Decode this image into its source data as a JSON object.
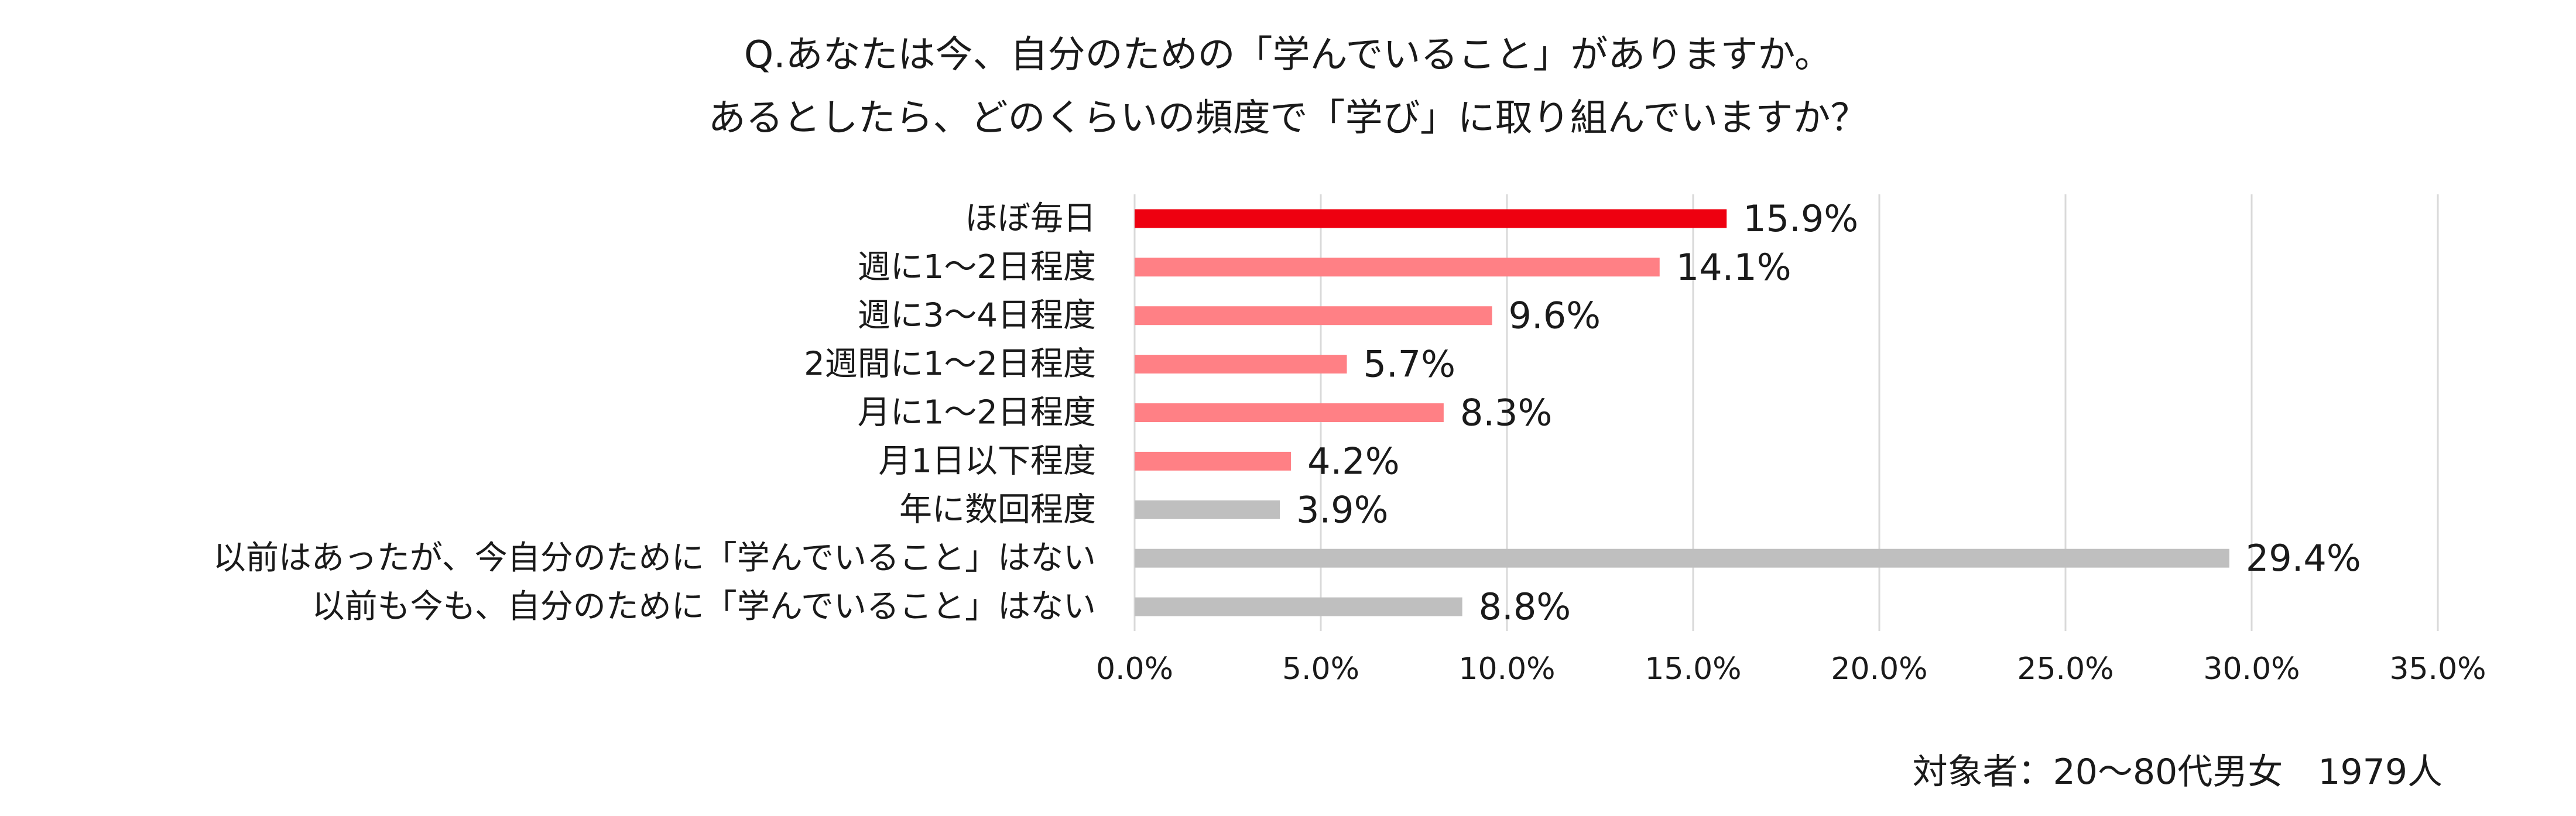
{
  "title": {
    "line1": "Q.あなたは今、自分のための「学んでいること」がありますか。",
    "line2": "あるとしたら、どのくらいの頻度で「学び」に取り組んでいますか？"
  },
  "note": "対象者：20～80代男女　1979人",
  "colors": {
    "highlight": "#ee0010",
    "learning": "#ff8085",
    "not_learning": "#bfbfbf",
    "grid": "#d9d9d9"
  },
  "chart_data": {
    "type": "bar",
    "orientation": "horizontal",
    "categories": [
      "ほぼ毎日",
      "週に1～2日程度",
      "週に3～4日程度",
      "2週間に1～2日程度",
      "月に1～2日程度",
      "月1日以下程度",
      "年に数回程度",
      "以前はあったが、今自分のために「学んでいること」はない",
      "以前も今も、自分のために「学んでいること」はない"
    ],
    "values": [
      15.9,
      14.1,
      9.6,
      5.7,
      8.3,
      4.2,
      3.9,
      29.4,
      8.8
    ],
    "value_labels": [
      "15.9%",
      "14.1%",
      "9.6%",
      "5.7%",
      "8.3%",
      "4.2%",
      "3.9%",
      "29.4%",
      "8.8%"
    ],
    "bar_colors": [
      "#ee0010",
      "#ff8085",
      "#ff8085",
      "#ff8085",
      "#ff8085",
      "#ff8085",
      "#bfbfbf",
      "#bfbfbf",
      "#bfbfbf"
    ],
    "xlim": [
      0,
      35
    ],
    "xticks": [
      0,
      5,
      10,
      15,
      20,
      25,
      30,
      35
    ],
    "xtick_labels": [
      "0.0%",
      "5.0%",
      "10.0%",
      "15.0%",
      "20.0%",
      "25.0%",
      "30.0%",
      "35.0%"
    ],
    "grid": true,
    "legend": "none"
  }
}
